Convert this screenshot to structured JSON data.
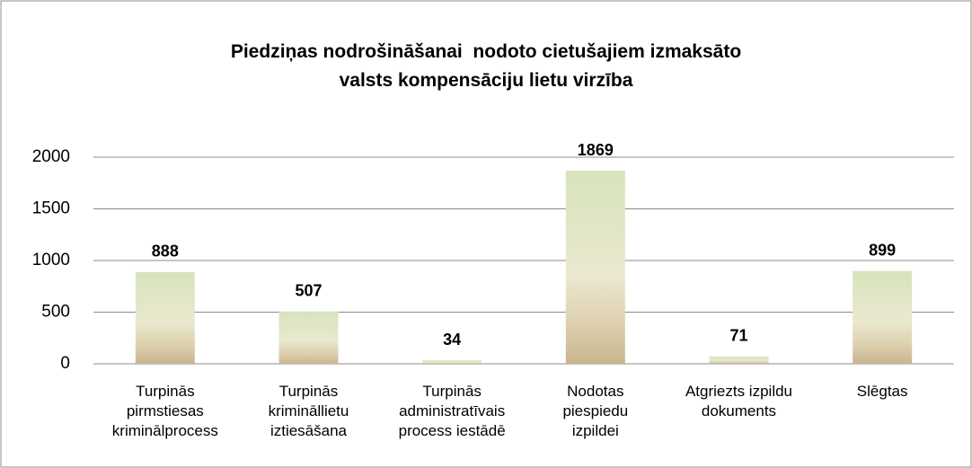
{
  "chart_data": {
    "type": "bar",
    "title": "Piedziņas nodrošināšanai  nodoto cietušajiem izmaksāto\nvalsts kompensāciju lietu virzība",
    "categories": [
      "Turpinās\npirmstiesas\nkriminālprocess",
      "Turpinās\nkrimināllietu\niztiesāšana",
      "Turpinās\nadministratīvais\nprocess iestādē",
      "Nodotas\npiespiedu\nizpildei",
      "Atgriezts izpildu\ndokuments",
      "Slēgtas"
    ],
    "values": [
      888,
      507,
      34,
      1869,
      71,
      899
    ],
    "color": "#d7e4bd",
    "ylim": [
      0,
      2000
    ],
    "yticks": [
      0,
      500,
      1000,
      1500,
      2000
    ],
    "grid": true
  }
}
